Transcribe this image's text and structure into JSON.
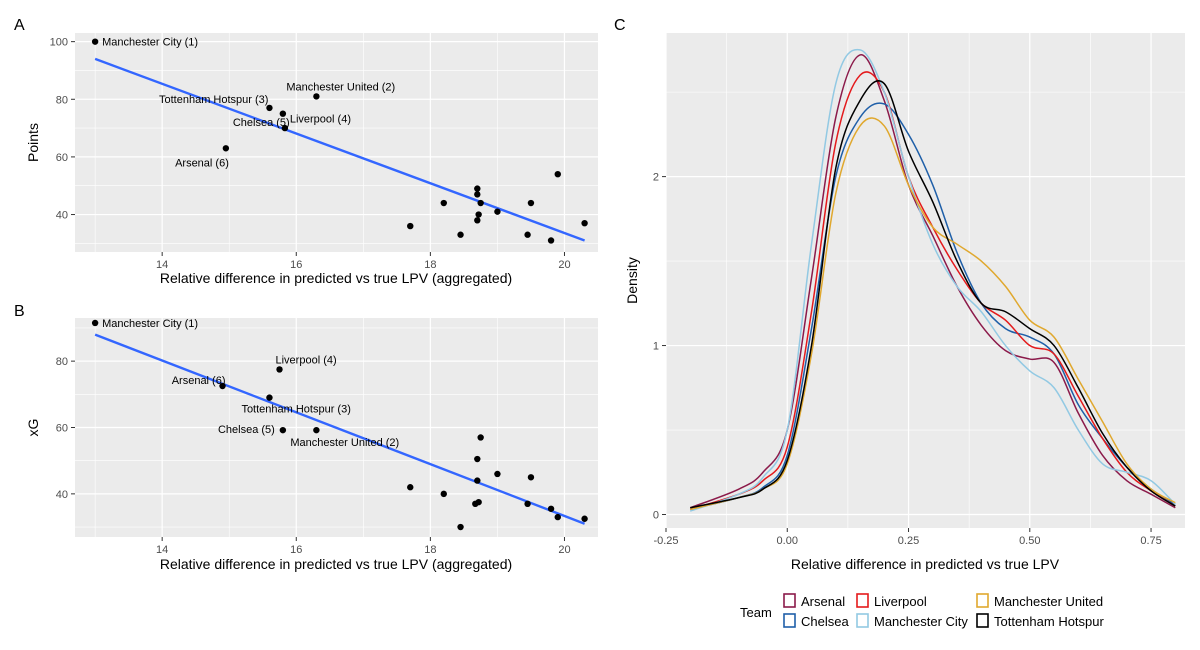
{
  "chart_data": [
    {
      "panel": "A",
      "type": "scatter",
      "xlabel": "Relative difference in predicted vs true LPV (aggregated)",
      "ylabel": "Points",
      "xlim": [
        12.7,
        20.5
      ],
      "ylim": [
        27,
        103
      ],
      "xticks": [
        14,
        16,
        18,
        20
      ],
      "yticks": [
        40,
        60,
        80,
        100
      ],
      "points": [
        {
          "x": 13.0,
          "y": 100,
          "label": "Manchester City (1)"
        },
        {
          "x": 16.3,
          "y": 81,
          "label": "Manchester United (2)"
        },
        {
          "x": 15.6,
          "y": 77,
          "label": "Tottenham Hotspur (3)"
        },
        {
          "x": 15.8,
          "y": 75,
          "label": "Liverpool (4)"
        },
        {
          "x": 15.83,
          "y": 70,
          "label": "Chelsea (5)"
        },
        {
          "x": 14.95,
          "y": 63,
          "label": "Arsenal (6)"
        },
        {
          "x": 19.9,
          "y": 54
        },
        {
          "x": 18.7,
          "y": 49
        },
        {
          "x": 18.7,
          "y": 47
        },
        {
          "x": 18.2,
          "y": 44
        },
        {
          "x": 18.75,
          "y": 44
        },
        {
          "x": 19.5,
          "y": 44
        },
        {
          "x": 19.0,
          "y": 41
        },
        {
          "x": 18.72,
          "y": 40
        },
        {
          "x": 18.7,
          "y": 38
        },
        {
          "x": 17.7,
          "y": 36
        },
        {
          "x": 20.3,
          "y": 37
        },
        {
          "x": 18.45,
          "y": 33
        },
        {
          "x": 19.45,
          "y": 33
        },
        {
          "x": 19.8,
          "y": 31
        }
      ],
      "trend": {
        "x": [
          13.0,
          20.3
        ],
        "y": [
          94,
          31
        ]
      }
    },
    {
      "panel": "B",
      "type": "scatter",
      "xlabel": "Relative difference in predicted vs true LPV (aggregated)",
      "ylabel": "xG",
      "xlim": [
        12.7,
        20.5
      ],
      "ylim": [
        27,
        93
      ],
      "xticks": [
        14,
        16,
        18,
        20
      ],
      "yticks": [
        40,
        60,
        80
      ],
      "points": [
        {
          "x": 13.0,
          "y": 91.5,
          "label": "Manchester City (1)"
        },
        {
          "x": 15.75,
          "y": 77.5,
          "label": "Liverpool (4)"
        },
        {
          "x": 14.9,
          "y": 72.5,
          "label": "Arsenal (6)"
        },
        {
          "x": 15.6,
          "y": 69,
          "label": "Tottenham Hotspur (3)"
        },
        {
          "x": 15.8,
          "y": 59.2,
          "label": "Chelsea (5)"
        },
        {
          "x": 16.3,
          "y": 59.2,
          "label": "Manchester United (2)"
        },
        {
          "x": 18.75,
          "y": 57
        },
        {
          "x": 18.7,
          "y": 50.5
        },
        {
          "x": 19.0,
          "y": 46
        },
        {
          "x": 19.5,
          "y": 45
        },
        {
          "x": 18.7,
          "y": 44
        },
        {
          "x": 17.7,
          "y": 42
        },
        {
          "x": 18.2,
          "y": 40
        },
        {
          "x": 18.72,
          "y": 37.5
        },
        {
          "x": 18.67,
          "y": 37
        },
        {
          "x": 19.45,
          "y": 37
        },
        {
          "x": 19.8,
          "y": 35.5
        },
        {
          "x": 19.9,
          "y": 33
        },
        {
          "x": 20.3,
          "y": 32.5
        },
        {
          "x": 18.45,
          "y": 30
        }
      ],
      "trend": {
        "x": [
          13.0,
          20.3
        ],
        "y": [
          88,
          31
        ]
      }
    },
    {
      "panel": "C",
      "type": "line",
      "xlabel": "Relative difference in predicted vs true LPV",
      "ylabel": "Density",
      "xlim": [
        -0.25,
        0.82
      ],
      "ylim": [
        -0.08,
        2.85
      ],
      "xticks": [
        -0.25,
        0.0,
        0.25,
        0.5,
        0.75
      ],
      "xtick_labels": [
        "-0.25",
        "0.00",
        "0.25",
        "0.50",
        "0.75"
      ],
      "yticks": [
        0,
        1,
        2
      ],
      "legend_title": "Team",
      "legend_position": "bottom",
      "series": [
        {
          "name": "Arsenal",
          "color": "#8b1a4a",
          "x": [
            -0.2,
            -0.1,
            -0.05,
            0.0,
            0.05,
            0.1,
            0.15,
            0.2,
            0.25,
            0.3,
            0.35,
            0.4,
            0.45,
            0.5,
            0.55,
            0.6,
            0.65,
            0.7,
            0.75,
            0.8
          ],
          "y": [
            0.04,
            0.15,
            0.25,
            0.5,
            1.4,
            2.35,
            2.72,
            2.45,
            1.95,
            1.65,
            1.35,
            1.12,
            0.97,
            0.92,
            0.9,
            0.6,
            0.35,
            0.2,
            0.12,
            0.04
          ]
        },
        {
          "name": "Chelsea",
          "color": "#1f5fa8",
          "x": [
            -0.2,
            -0.1,
            -0.05,
            0.0,
            0.05,
            0.1,
            0.15,
            0.2,
            0.25,
            0.3,
            0.35,
            0.4,
            0.45,
            0.5,
            0.55,
            0.6,
            0.65,
            0.7,
            0.75,
            0.8
          ],
          "y": [
            0.03,
            0.1,
            0.16,
            0.35,
            1.1,
            2.0,
            2.35,
            2.43,
            2.25,
            1.95,
            1.55,
            1.25,
            1.1,
            1.05,
            0.95,
            0.65,
            0.45,
            0.28,
            0.15,
            0.06
          ]
        },
        {
          "name": "Liverpool",
          "color": "#e41a1c",
          "x": [
            -0.2,
            -0.1,
            -0.05,
            0.0,
            0.05,
            0.1,
            0.15,
            0.2,
            0.25,
            0.3,
            0.35,
            0.4,
            0.45,
            0.5,
            0.55,
            0.6,
            0.65,
            0.7,
            0.75,
            0.8
          ],
          "y": [
            0.03,
            0.12,
            0.2,
            0.4,
            1.2,
            2.2,
            2.6,
            2.5,
            2.0,
            1.7,
            1.45,
            1.25,
            1.15,
            1.0,
            0.95,
            0.7,
            0.45,
            0.25,
            0.14,
            0.05
          ]
        },
        {
          "name": "Manchester City",
          "color": "#92c9e3",
          "x": [
            -0.2,
            -0.1,
            -0.05,
            0.0,
            0.05,
            0.1,
            0.15,
            0.2,
            0.25,
            0.3,
            0.35,
            0.4,
            0.45,
            0.5,
            0.55,
            0.6,
            0.65,
            0.7,
            0.75,
            0.8
          ],
          "y": [
            0.02,
            0.12,
            0.22,
            0.5,
            1.6,
            2.55,
            2.75,
            2.5,
            2.0,
            1.6,
            1.35,
            1.2,
            1.0,
            0.85,
            0.75,
            0.5,
            0.3,
            0.25,
            0.2,
            0.06
          ]
        },
        {
          "name": "Manchester United",
          "color": "#e0a82e",
          "x": [
            -0.2,
            -0.1,
            -0.05,
            0.0,
            0.05,
            0.1,
            0.15,
            0.2,
            0.25,
            0.3,
            0.35,
            0.4,
            0.45,
            0.5,
            0.55,
            0.6,
            0.65,
            0.7,
            0.75,
            0.8
          ],
          "y": [
            0.03,
            0.1,
            0.15,
            0.3,
            0.95,
            1.9,
            2.3,
            2.3,
            1.95,
            1.7,
            1.6,
            1.5,
            1.35,
            1.15,
            1.05,
            0.8,
            0.55,
            0.3,
            0.15,
            0.07
          ]
        },
        {
          "name": "Tottenham Hotspur",
          "color": "#000000",
          "x": [
            -0.2,
            -0.1,
            -0.05,
            0.0,
            0.05,
            0.1,
            0.15,
            0.2,
            0.25,
            0.3,
            0.35,
            0.4,
            0.45,
            0.5,
            0.55,
            0.6,
            0.65,
            0.7,
            0.75,
            0.8
          ],
          "y": [
            0.04,
            0.1,
            0.15,
            0.32,
            1.0,
            2.05,
            2.45,
            2.55,
            2.15,
            1.85,
            1.5,
            1.25,
            1.2,
            1.1,
            1.0,
            0.75,
            0.48,
            0.28,
            0.14,
            0.05
          ]
        }
      ]
    }
  ]
}
